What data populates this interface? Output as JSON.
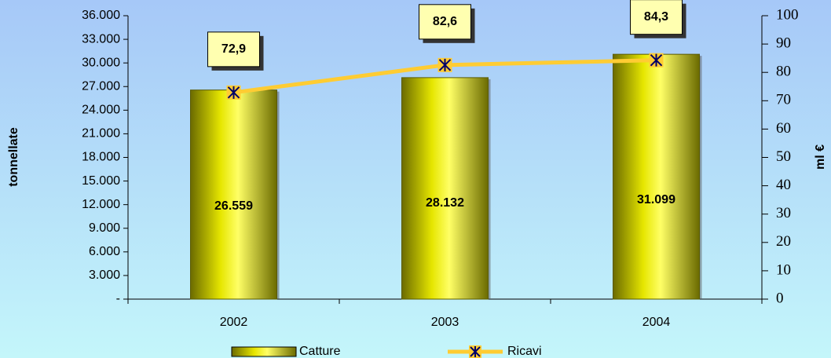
{
  "chart_data": {
    "type": "bar",
    "categories": [
      "2002",
      "2003",
      "2004"
    ],
    "series": [
      {
        "name": "Catture",
        "type": "bar",
        "color": "#e6e600",
        "values": [
          26559,
          28132,
          31099
        ],
        "value_labels": [
          "26.559",
          "28.132",
          "31.099"
        ]
      },
      {
        "name": "Ricavi",
        "type": "line",
        "axis": "y2",
        "color": "#ffcc33",
        "values": [
          72.9,
          82.6,
          84.3
        ],
        "value_labels": [
          "72,9",
          "82,6",
          "84,3"
        ]
      }
    ],
    "ylabel": "tonnellate",
    "y2label": "ml €",
    "ylim": [
      0,
      36000
    ],
    "yticks": [
      {
        "value": 0,
        "label": "-"
      },
      {
        "value": 3000,
        "label": "3.000"
      },
      {
        "value": 6000,
        "label": "6.000"
      },
      {
        "value": 9000,
        "label": "9.000"
      },
      {
        "value": 12000,
        "label": "12.000"
      },
      {
        "value": 15000,
        "label": "15.000"
      },
      {
        "value": 18000,
        "label": "18.000"
      },
      {
        "value": 21000,
        "label": "21.000"
      },
      {
        "value": 24000,
        "label": "24.000"
      },
      {
        "value": 27000,
        "label": "27.000"
      },
      {
        "value": 30000,
        "label": "30.000"
      },
      {
        "value": 33000,
        "label": "33.000"
      },
      {
        "value": 36000,
        "label": "36.000"
      }
    ],
    "y2lim": [
      0,
      100
    ],
    "y2ticks": [
      0,
      10,
      20,
      30,
      40,
      50,
      60,
      70,
      80,
      90,
      100
    ],
    "grid": false,
    "legend": "bottom"
  }
}
